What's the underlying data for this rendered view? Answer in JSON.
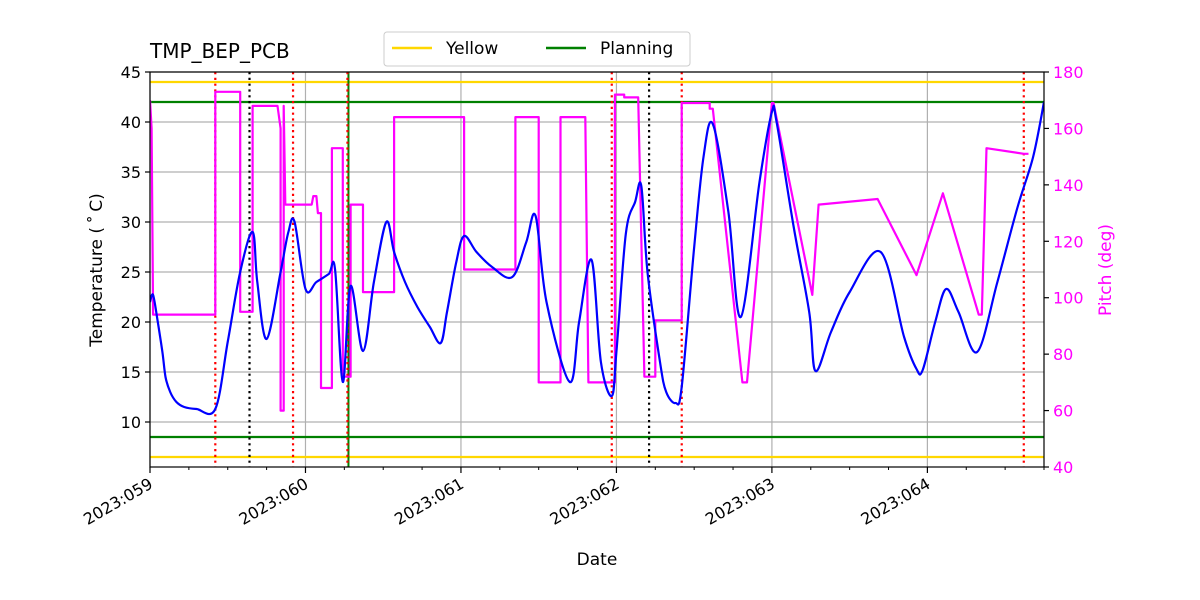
{
  "chart_data": {
    "type": "line",
    "title": "TMP_BEP_PCB",
    "xlabel": "Date",
    "ylabel": "Temperature ($^\\circ$C)",
    "ylabel_display": "Temperature ( ˚ C)",
    "y2label": "Pitch (deg)",
    "xlim": [
      59.0,
      64.75
    ],
    "ylim": [
      5.5,
      45
    ],
    "y2lim": [
      40,
      180
    ],
    "x_ticks": [
      {
        "value": 59,
        "label": "2023:059"
      },
      {
        "value": 60,
        "label": "2023:060"
      },
      {
        "value": 61,
        "label": "2023:061"
      },
      {
        "value": 62,
        "label": "2023:062"
      },
      {
        "value": 63,
        "label": "2023:063"
      },
      {
        "value": 64,
        "label": "2023:064"
      }
    ],
    "y_ticks": [
      10,
      15,
      20,
      25,
      30,
      35,
      40,
      45
    ],
    "y2_ticks": [
      40,
      60,
      80,
      100,
      120,
      140,
      160,
      180
    ],
    "grid": true,
    "legend": {
      "placement": "top-center",
      "entries": [
        {
          "name": "Yellow",
          "color": "#ffd700"
        },
        {
          "name": "Planning",
          "color": "#008000"
        }
      ]
    },
    "colors": {
      "temperature": "#0000ff",
      "pitch": "#ff00ff",
      "yellow": "#ffd700",
      "planning": "#008000",
      "red_marker": "#ff0000",
      "black_marker": "#000000",
      "grid": "#b0b0b0"
    },
    "limit_lines": [
      {
        "name": "Yellow",
        "values": [
          44.0,
          6.5
        ]
      },
      {
        "name": "Planning",
        "values": [
          42.0,
          8.5
        ]
      }
    ],
    "red_markers": [
      59.42,
      59.92,
      60.27,
      61.97,
      62.42,
      64.62
    ],
    "black_markers": [
      59.64,
      62.21
    ],
    "green_markers": [
      60.27
    ],
    "temperature": {
      "x": [
        59.0,
        59.02,
        59.05,
        59.08,
        59.1,
        59.13,
        59.17,
        59.22,
        59.3,
        59.42,
        59.5,
        59.58,
        59.66,
        59.69,
        59.75,
        59.84,
        59.89,
        59.93,
        60.0,
        60.07,
        60.15,
        60.19,
        60.24,
        60.29,
        60.37,
        60.44,
        60.52,
        60.57,
        60.64,
        60.72,
        60.8,
        60.87,
        60.91,
        60.97,
        61.02,
        61.1,
        61.2,
        61.33,
        61.42,
        61.48,
        61.55,
        61.7,
        61.76,
        61.84,
        61.9,
        61.97,
        62.0,
        62.06,
        62.12,
        62.16,
        62.2,
        62.28,
        62.32,
        62.38,
        62.42,
        62.5,
        62.56,
        62.62,
        62.72,
        62.8,
        62.92,
        63.0,
        63.03,
        63.14,
        63.24,
        63.28,
        63.38,
        63.5,
        63.7,
        63.85,
        63.93,
        63.97,
        64.05,
        64.12,
        64.2,
        64.32,
        64.45,
        64.58,
        64.68,
        64.75
      ],
      "y": [
        22.0,
        22.7,
        20.0,
        17.0,
        14.5,
        13.0,
        12.0,
        11.5,
        11.3,
        11.3,
        18.0,
        25.0,
        29.0,
        24.0,
        18.3,
        25.0,
        29.0,
        30.0,
        23.3,
        24.0,
        24.8,
        25.3,
        14.0,
        23.6,
        17.1,
        24.0,
        30.0,
        27.0,
        24.0,
        21.5,
        19.5,
        17.9,
        21.0,
        26.0,
        28.6,
        27.0,
        25.5,
        24.5,
        28.0,
        30.6,
        22.0,
        14.0,
        20.0,
        26.2,
        16.0,
        12.6,
        17.0,
        28.8,
        32.0,
        33.6,
        25.0,
        16.0,
        13.0,
        11.9,
        13.5,
        27.5,
        36.5,
        39.8,
        31.0,
        20.5,
        34.0,
        41.0,
        40.0,
        29.5,
        21.0,
        15.1,
        19.0,
        23.0,
        27.0,
        18.5,
        15.3,
        15.2,
        20.0,
        23.3,
        21.0,
        17.0,
        24.0,
        31.5,
        36.5,
        42.0
      ]
    },
    "pitch": {
      "x": [
        59.0,
        59.01,
        59.02,
        59.035,
        59.42,
        59.42,
        59.5,
        59.58,
        59.58,
        59.6,
        59.66,
        59.66,
        59.77,
        59.78,
        59.8,
        59.82,
        59.84,
        59.84,
        59.86,
        59.86,
        59.87,
        59.9,
        59.93,
        59.93,
        59.98,
        60.0,
        60.04,
        60.05,
        60.07,
        60.08,
        60.1,
        60.1,
        60.17,
        60.17,
        60.24,
        60.24,
        60.29,
        60.29,
        60.37,
        60.37,
        60.43,
        60.43,
        60.57,
        60.57,
        60.85,
        60.86,
        61.0,
        61.02,
        61.02,
        61.35,
        61.35,
        61.48,
        61.5,
        61.5,
        61.64,
        61.64,
        61.76,
        61.78,
        61.8,
        61.82,
        61.84,
        61.84,
        61.99,
        61.99,
        62.05,
        62.05,
        62.14,
        62.18,
        62.18,
        62.25,
        62.25,
        62.42,
        62.42,
        62.43,
        62.58,
        62.6,
        62.6,
        62.62,
        62.81,
        62.84,
        63.0,
        63.01,
        63.01,
        63.26,
        63.26,
        63.3,
        63.3,
        63.68,
        63.68,
        63.93,
        63.93,
        64.1,
        64.1,
        64.33,
        64.33,
        64.35,
        64.38,
        64.62,
        64.62,
        64.65
      ],
      "y": [
        170,
        160,
        94,
        94,
        94,
        173,
        173,
        173,
        95,
        95,
        95,
        168,
        168,
        168,
        168,
        168,
        160,
        60,
        60,
        168,
        133,
        133,
        133,
        133,
        133,
        133,
        133,
        136,
        136,
        130,
        130,
        68,
        68,
        153,
        153,
        72,
        72,
        133,
        133,
        102,
        102,
        102,
        102,
        164,
        164,
        164,
        164,
        164,
        110,
        110,
        164,
        164,
        164,
        70,
        70,
        164,
        164,
        164,
        164,
        70,
        70,
        70,
        70,
        172,
        172,
        171,
        171,
        72,
        72,
        72,
        92,
        92,
        169,
        169,
        169,
        169,
        167,
        167,
        70,
        70,
        169,
        169,
        169,
        101,
        101,
        133,
        133,
        135,
        135,
        108,
        108,
        137,
        137,
        94,
        94,
        94,
        153,
        151,
        151,
        151
      ]
    }
  }
}
